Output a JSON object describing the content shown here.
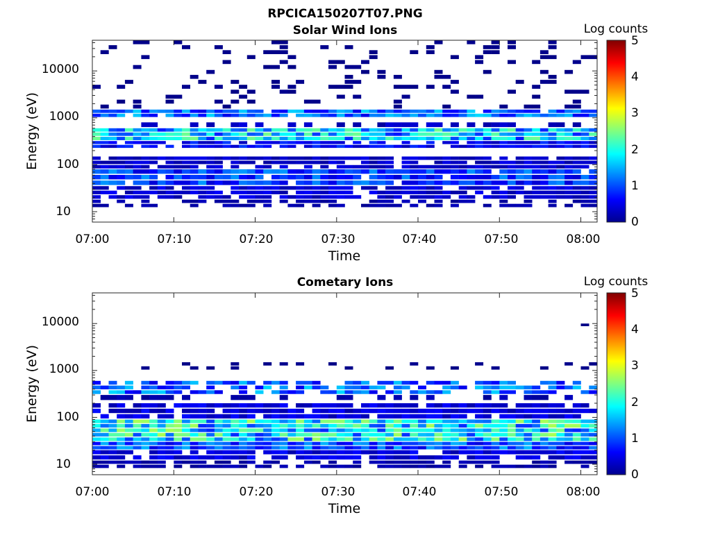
{
  "figure_title": "RPCICA150207T07.PNG",
  "chart_data": [
    {
      "type": "heatmap",
      "title": "Solar Wind Ions",
      "xlabel": "Time",
      "ylabel": "Energy (eV)",
      "x_ticks": [
        "07:00",
        "07:10",
        "07:20",
        "07:30",
        "07:40",
        "07:50",
        "08:00"
      ],
      "x_range_minutes": [
        0,
        62
      ],
      "y_ticks": [
        "10",
        "100",
        "1000",
        "10000"
      ],
      "y_scale": "log",
      "y_range_eV": [
        6,
        45000
      ],
      "colorbar": {
        "label": "Log counts",
        "ticks": [
          "0",
          "1",
          "2",
          "3",
          "4",
          "5"
        ],
        "range": [
          0,
          5
        ],
        "colormap": "jet"
      },
      "bands": [
        {
          "energy_eV": [
            12,
            18
          ],
          "level": 0.2,
          "fill": 0.55
        },
        {
          "energy_eV": [
            18,
            35
          ],
          "level": 0.4,
          "fill": 0.85
        },
        {
          "energy_eV": [
            35,
            80
          ],
          "level": 0.9,
          "fill": 0.95
        },
        {
          "energy_eV": [
            80,
            150
          ],
          "level": 0.35,
          "fill": 0.85
        },
        {
          "energy_eV": [
            220,
            320
          ],
          "level": 0.6,
          "fill": 0.85
        },
        {
          "energy_eV": [
            320,
            600
          ],
          "level": 1.6,
          "fill": 1.0
        },
        {
          "energy_eV": [
            600,
            800
          ],
          "level": 0.3,
          "fill": 0.5
        },
        {
          "energy_eV": [
            1000,
            1500
          ],
          "level": 1.1,
          "fill": 0.95
        },
        {
          "energy_eV": [
            1500,
            45000
          ],
          "level": 0.05,
          "fill": 0.16
        }
      ]
    },
    {
      "type": "heatmap",
      "title": "Cometary Ions",
      "xlabel": "Time",
      "ylabel": "Energy (eV)",
      "x_ticks": [
        "07:00",
        "07:10",
        "07:20",
        "07:30",
        "07:40",
        "07:50",
        "08:00"
      ],
      "x_range_minutes": [
        0,
        62
      ],
      "y_ticks": [
        "10",
        "100",
        "1000",
        "10000"
      ],
      "y_scale": "log",
      "y_range_eV": [
        6,
        45000
      ],
      "colorbar": {
        "label": "Log counts",
        "ticks": [
          "0",
          "1",
          "2",
          "3",
          "4",
          "5"
        ],
        "range": [
          0,
          5
        ],
        "colormap": "jet"
      },
      "bands": [
        {
          "energy_eV": [
            8,
            12
          ],
          "level": 0.2,
          "fill": 0.7
        },
        {
          "energy_eV": [
            12,
            20
          ],
          "level": 0.45,
          "fill": 0.9
        },
        {
          "energy_eV": [
            20,
            30
          ],
          "level": 1.0,
          "fill": 1.0
        },
        {
          "energy_eV": [
            30,
            90
          ],
          "level": 1.75,
          "fill": 1.0
        },
        {
          "energy_eV": [
            90,
            200
          ],
          "level": 0.45,
          "fill": 0.9
        },
        {
          "energy_eV": [
            220,
            300
          ],
          "level": 0.2,
          "fill": 0.45
        },
        {
          "energy_eV": [
            300,
            600
          ],
          "level": 1.1,
          "fill": 0.75
        },
        {
          "energy_eV": [
            1000,
            1500
          ],
          "level": 0.05,
          "fill": 0.25
        },
        {
          "energy_eV": [
            8500,
            10000
          ],
          "level": 0.05,
          "fill": 0.02
        }
      ]
    }
  ]
}
